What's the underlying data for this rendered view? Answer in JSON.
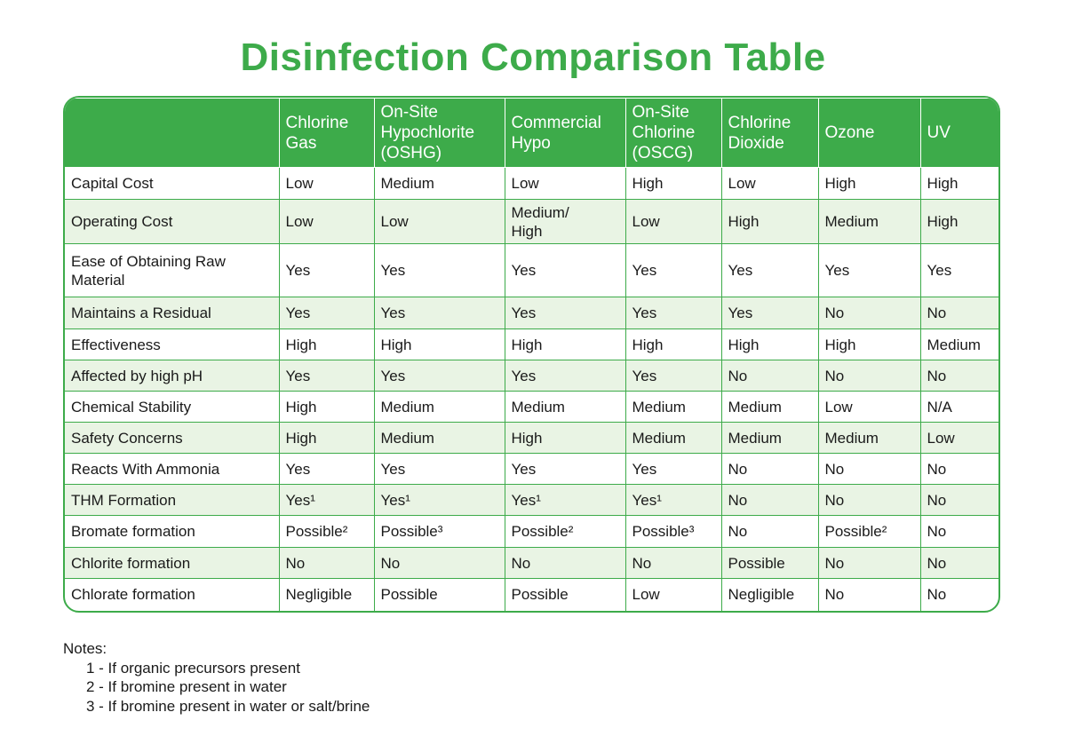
{
  "header": {
    "title": "Disinfection Comparison Table"
  },
  "table": {
    "columns": [
      "",
      "Chlorine\nGas",
      "On-Site\nHypochlorite\n(OSHG)",
      "Commercial\nHypo",
      "On-Site\nChlorine\n(OSCG)",
      "Chlorine\nDioxide",
      "Ozone",
      "UV"
    ],
    "rows": [
      [
        "Capital Cost",
        "Low",
        "Medium",
        "Low",
        "High",
        "Low",
        "High",
        "High"
      ],
      [
        "Operating Cost",
        "Low",
        "Low",
        "Medium/\nHigh",
        "Low",
        "High",
        "Medium",
        "High"
      ],
      [
        "Ease of Obtaining Raw\nMaterial",
        "Yes",
        "Yes",
        "Yes",
        "Yes",
        "Yes",
        "Yes",
        "Yes"
      ],
      [
        "Maintains a Residual",
        "Yes",
        "Yes",
        "Yes",
        "Yes",
        "Yes",
        "No",
        "No"
      ],
      [
        "Effectiveness",
        "High",
        "High",
        "High",
        "High",
        "High",
        "High",
        "Medium"
      ],
      [
        "Affected by high pH",
        "Yes",
        "Yes",
        "Yes",
        "Yes",
        "No",
        "No",
        "No"
      ],
      [
        "Chemical Stability",
        "High",
        "Medium",
        "Medium",
        "Medium",
        "Medium",
        "Low",
        "N/A"
      ],
      [
        "Safety Concerns",
        "High",
        "Medium",
        "High",
        "Medium",
        "Medium",
        "Medium",
        "Low"
      ],
      [
        "Reacts With Ammonia",
        "Yes",
        "Yes",
        "Yes",
        "Yes",
        "No",
        "No",
        "No"
      ],
      [
        "THM Formation",
        "Yes¹",
        "Yes¹",
        "Yes¹",
        "Yes¹",
        "No",
        "No",
        "No"
      ],
      [
        "Bromate formation",
        "Possible²",
        "Possible³",
        "Possible²",
        "Possible³",
        "No",
        "Possible²",
        "No"
      ],
      [
        "Chlorite formation",
        "No",
        "No",
        "No",
        "No",
        "Possible",
        "No",
        "No"
      ],
      [
        "Chlorate formation",
        "Negligible",
        "Possible",
        "Possible",
        "Low",
        "Negligible",
        "No",
        "No"
      ]
    ]
  },
  "notes": {
    "title": "Notes:",
    "items": [
      "1 -  If organic precursors present",
      "2 - If bromine present in water",
      "3 - If bromine present in water or salt/brine"
    ]
  }
}
